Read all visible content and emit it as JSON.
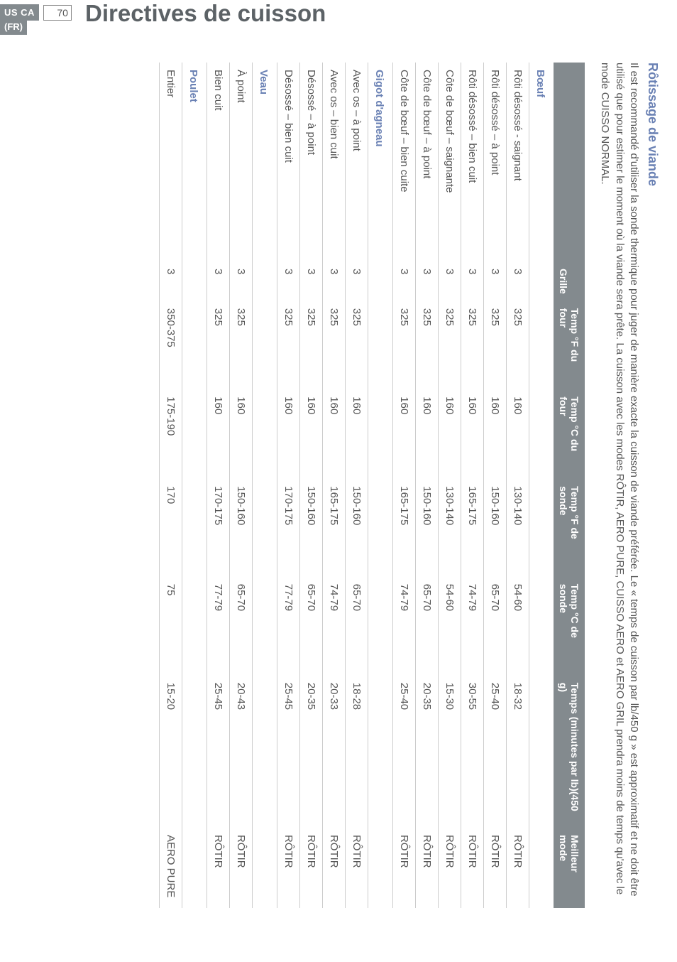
{
  "tab": {
    "region": "US CA",
    "lang": "(FR)",
    "page_num": "70"
  },
  "title": "Directives de cuisson",
  "section_heading": "Rôtissage de viande",
  "intro": "Il est recommandé d'utiliser la sonde thermique pour juger de manière exacte la cuisson de viande préférée. Le « temps de cuisson par lb/450 g » est approximatif et ne doit être utilisé que pour estimer le moment où la viande sera prête. La cuisson avec les modes RÔTIR, AERO PURE, CUISSO AERO et AERO GRIL prendra moins de temps qu'avec le mode CUISSO NORMAL.",
  "table": {
    "headers": [
      "",
      "Grille",
      "Temp °F du four",
      "Temp °C du four",
      "Temp °F de sonde",
      "Temp °C de sonde",
      "Temps (minutes par lb)(450 g)",
      "Meilleur mode"
    ],
    "groups": [
      {
        "label": "Bœuf",
        "rows": [
          [
            "Rôti désossé - saignant",
            "3",
            "325",
            "160",
            "130-140",
            "54-60",
            "18-32",
            "RÔTIR"
          ],
          [
            "Rôti désossé – à point",
            "3",
            "325",
            "160",
            "150-160",
            "65-70",
            "25-40",
            "RÔTIR"
          ],
          [
            "Rôti désossé – bien cuit",
            "3",
            "325",
            "160",
            "165-175",
            "74-79",
            "30-55",
            "RÔTIR"
          ],
          [
            "Côte de bœuf – saignante",
            "3",
            "325",
            "160",
            "130-140",
            "54-60",
            "15-30",
            "RÔTIR"
          ],
          [
            "Côte de bœuf – à point",
            "3",
            "325",
            "160",
            "150-160",
            "65-70",
            "20-35",
            "RÔTIR"
          ],
          [
            "Côte de bœuf – bien cuite",
            "3",
            "325",
            "160",
            "165-175",
            "74-79",
            "25-40",
            "RÔTIR"
          ]
        ]
      },
      {
        "label": "Gigot d'agneau",
        "rows": [
          [
            "Avec os – à point",
            "3",
            "325",
            "160",
            "150-160",
            "65-70",
            "18-28",
            "RÔTIR"
          ],
          [
            "Avec os – bien cuit",
            "3",
            "325",
            "160",
            "165-175",
            "74-79",
            "20-33",
            "RÔTIR"
          ],
          [
            "Désossé – à point",
            "3",
            "325",
            "160",
            "150-160",
            "65-70",
            "20-35",
            "RÔTIR"
          ],
          [
            "Désossé – bien cuit",
            "3",
            "325",
            "160",
            "170-175",
            "77-79",
            "25-45",
            "RÔTIR"
          ]
        ]
      },
      {
        "label": "Veau",
        "rows": [
          [
            "À point",
            "3",
            "325",
            "160",
            "150-160",
            "65-70",
            "20-43",
            "RÔTIR"
          ],
          [
            "Bien cuit",
            "3",
            "325",
            "160",
            "170-175",
            "77-79",
            "25-45",
            "RÔTIR"
          ]
        ]
      },
      {
        "label": "Poulet",
        "rows": [
          [
            "Entier",
            "3",
            "350-375",
            "175-190",
            "170",
            "75",
            "15-20",
            "AERO PURE"
          ]
        ]
      }
    ]
  }
}
